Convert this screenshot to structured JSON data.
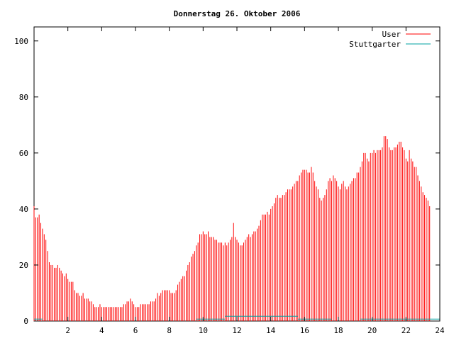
{
  "chart_data": {
    "type": "bar",
    "title": "Donnerstag 26. Oktober 2006",
    "xlabel": "",
    "ylabel": "",
    "xlim": [
      0,
      24
    ],
    "ylim": [
      0,
      105
    ],
    "x_ticks": [
      2,
      4,
      6,
      8,
      10,
      12,
      14,
      16,
      18,
      20,
      22,
      24
    ],
    "y_ticks": [
      0,
      20,
      40,
      60,
      80,
      100
    ],
    "legend_position": "top-right",
    "series": [
      {
        "name": "User",
        "color": "#ff0000",
        "x_step": 0.1,
        "values": [
          41,
          37,
          37,
          38,
          35,
          33,
          31,
          29,
          25,
          21,
          20,
          20,
          19,
          19,
          20,
          19,
          18,
          17,
          16,
          17,
          15,
          14,
          14,
          14,
          11,
          10,
          10,
          9,
          9,
          10,
          8,
          8,
          8,
          7,
          7,
          6,
          5,
          5,
          5,
          6,
          5,
          5,
          5,
          5,
          5,
          5,
          5,
          5,
          5,
          5,
          5,
          5,
          5,
          6,
          6,
          7,
          7,
          8,
          7,
          6,
          5,
          5,
          5,
          6,
          6,
          6,
          6,
          6,
          6,
          7,
          7,
          7,
          8,
          10,
          9,
          10,
          11,
          11,
          11,
          11,
          11,
          10,
          10,
          10,
          11,
          13,
          14,
          15,
          16,
          16,
          18,
          20,
          21,
          23,
          24,
          25,
          27,
          28,
          31,
          31,
          32,
          31,
          31,
          32,
          30,
          30,
          30,
          29,
          29,
          28,
          28,
          28,
          27,
          28,
          27,
          28,
          29,
          30,
          35,
          30,
          29,
          28,
          27,
          27,
          28,
          29,
          30,
          31,
          30,
          31,
          32,
          32,
          33,
          34,
          36,
          38,
          38,
          38,
          39,
          38,
          40,
          41,
          42,
          44,
          45,
          44,
          44,
          45,
          45,
          46,
          47,
          47,
          47,
          48,
          49,
          50,
          50,
          52,
          53,
          54,
          54,
          54,
          53,
          53,
          55,
          53,
          50,
          48,
          47,
          44,
          43,
          44,
          45,
          47,
          50,
          51,
          50,
          52,
          51,
          50,
          48,
          47,
          49,
          50,
          48,
          47,
          48,
          49,
          50,
          51,
          51,
          53,
          53,
          55,
          57,
          60,
          60,
          58,
          57,
          60,
          60,
          61,
          60,
          61,
          61,
          61,
          62,
          66,
          66,
          65,
          62,
          61,
          61,
          62,
          62,
          63,
          64,
          64,
          62,
          61,
          58,
          57,
          61,
          58,
          57,
          55,
          55,
          52,
          50,
          48,
          46,
          45,
          44,
          43,
          41
        ]
      },
      {
        "name": "Stuttgarter",
        "color": "#00a0a0",
        "segments": [
          {
            "x_start": 0.0,
            "x_end": 0.5,
            "value": 0.7
          },
          {
            "x_start": 9.6,
            "x_end": 11.3,
            "value": 0.7
          },
          {
            "x_start": 11.3,
            "x_end": 15.6,
            "value": 1.7
          },
          {
            "x_start": 15.6,
            "x_end": 17.6,
            "value": 0.7
          },
          {
            "x_start": 19.3,
            "x_end": 24.0,
            "value": 0.7
          }
        ]
      }
    ]
  }
}
